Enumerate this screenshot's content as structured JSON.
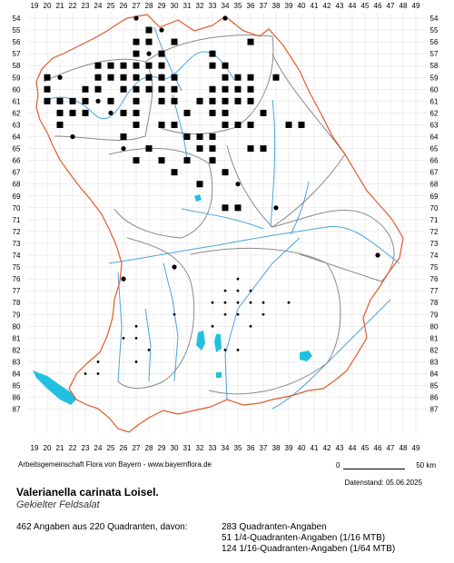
{
  "map": {
    "x_labels": [
      "19",
      "20",
      "21",
      "22",
      "23",
      "24",
      "25",
      "26",
      "27",
      "28",
      "29",
      "30",
      "31",
      "32",
      "33",
      "34",
      "35",
      "36",
      "37",
      "38",
      "39",
      "40",
      "41",
      "42",
      "43",
      "44",
      "45",
      "46",
      "47",
      "48",
      "49"
    ],
    "y_labels": [
      "54",
      "55",
      "56",
      "57",
      "58",
      "59",
      "60",
      "61",
      "62",
      "63",
      "64",
      "65",
      "66",
      "67",
      "68",
      "69",
      "70",
      "71",
      "72",
      "73",
      "74",
      "75",
      "76",
      "77",
      "78",
      "79",
      "80",
      "81",
      "82",
      "83",
      "84",
      "85",
      "86",
      "87"
    ],
    "colors": {
      "state_border": "#e05a2b",
      "district_border": "#8a8a8a",
      "river": "#4aa3df",
      "lake": "#22c0e0",
      "grid": "#dddddd",
      "marker": "#000000"
    },
    "legend_meaning": {
      "square": "Quadranten-Angabe",
      "circle_filled": "1/4-Quadranten-Angabe (1/16 MTB)",
      "dot_small": "1/16-Quadranten-Angabe (1/64 MTB)"
    },
    "quadrant_records": [
      [
        20,
        59
      ],
      [
        20,
        60
      ],
      [
        20,
        61
      ],
      [
        21,
        61
      ],
      [
        21,
        62
      ],
      [
        21,
        63
      ],
      [
        22,
        61
      ],
      [
        22,
        62
      ],
      [
        23,
        60
      ],
      [
        23,
        61
      ],
      [
        23,
        62
      ],
      [
        24,
        58
      ],
      [
        24,
        59
      ],
      [
        24,
        60
      ],
      [
        25,
        58
      ],
      [
        25,
        59
      ],
      [
        25,
        61
      ],
      [
        26,
        58
      ],
      [
        26,
        59
      ],
      [
        26,
        60
      ],
      [
        26,
        62
      ],
      [
        26,
        64
      ],
      [
        27,
        56
      ],
      [
        27,
        57
      ],
      [
        27,
        58
      ],
      [
        27,
        59
      ],
      [
        27,
        60
      ],
      [
        27,
        61
      ],
      [
        27,
        62
      ],
      [
        27,
        63
      ],
      [
        27,
        66
      ],
      [
        28,
        55
      ],
      [
        28,
        56
      ],
      [
        28,
        58
      ],
      [
        28,
        59
      ],
      [
        28,
        60
      ],
      [
        28,
        65
      ],
      [
        29,
        57
      ],
      [
        29,
        58
      ],
      [
        29,
        59
      ],
      [
        29,
        60
      ],
      [
        29,
        61
      ],
      [
        29,
        63
      ],
      [
        29,
        66
      ],
      [
        30,
        56
      ],
      [
        30,
        59
      ],
      [
        30,
        60
      ],
      [
        30,
        61
      ],
      [
        30,
        63
      ],
      [
        30,
        67
      ],
      [
        31,
        62
      ],
      [
        31,
        64
      ],
      [
        31,
        66
      ],
      [
        32,
        61
      ],
      [
        32,
        64
      ],
      [
        32,
        65
      ],
      [
        32,
        68
      ],
      [
        33,
        57
      ],
      [
        33,
        58
      ],
      [
        33,
        60
      ],
      [
        33,
        61
      ],
      [
        33,
        62
      ],
      [
        33,
        64
      ],
      [
        33,
        65
      ],
      [
        33,
        66
      ],
      [
        34,
        58
      ],
      [
        34,
        59
      ],
      [
        34,
        60
      ],
      [
        34,
        61
      ],
      [
        34,
        62
      ],
      [
        34,
        63
      ],
      [
        34,
        67
      ],
      [
        34,
        70
      ],
      [
        35,
        59
      ],
      [
        35,
        60
      ],
      [
        35,
        61
      ],
      [
        35,
        63
      ],
      [
        35,
        70
      ],
      [
        36,
        56
      ],
      [
        36,
        59
      ],
      [
        36,
        60
      ],
      [
        36,
        61
      ],
      [
        36,
        63
      ],
      [
        36,
        65
      ],
      [
        37,
        62
      ],
      [
        37,
        65
      ],
      [
        38,
        59
      ],
      [
        39,
        63
      ],
      [
        40,
        63
      ]
    ],
    "quarter_records": [
      [
        21,
        59
      ],
      [
        22,
        64
      ],
      [
        24,
        61
      ],
      [
        25,
        62
      ],
      [
        26,
        65
      ],
      [
        27,
        54
      ],
      [
        28,
        57
      ],
      [
        29,
        55
      ],
      [
        34,
        54
      ],
      [
        35,
        68
      ],
      [
        35,
        70
      ],
      [
        38,
        70
      ],
      [
        46,
        74
      ],
      [
        26,
        76
      ],
      [
        30,
        75
      ]
    ],
    "sixteenth_records": [
      [
        33,
        78
      ],
      [
        34,
        77
      ],
      [
        34,
        78
      ],
      [
        35,
        76
      ],
      [
        35,
        77
      ],
      [
        35,
        78
      ],
      [
        36,
        77
      ],
      [
        36,
        78
      ],
      [
        37,
        78
      ],
      [
        37,
        79
      ],
      [
        36,
        80
      ],
      [
        35,
        79
      ],
      [
        34,
        79
      ],
      [
        33,
        80
      ],
      [
        30,
        79
      ],
      [
        27,
        80
      ],
      [
        27,
        81
      ],
      [
        28,
        82
      ],
      [
        27,
        83
      ],
      [
        34,
        82
      ],
      [
        35,
        82
      ],
      [
        23,
        84
      ],
      [
        24,
        84
      ],
      [
        24,
        83
      ],
      [
        39,
        78
      ],
      [
        26,
        81
      ]
    ]
  },
  "footer": {
    "credit": "Arbeitsgemeinschaft Flora von Bayern - www.bayernflora.de",
    "scale_start": "0",
    "scale_end": "50 km",
    "date": "Datenstand: 05.06.2025",
    "taxon_name": "Valerianella carinata Loisel.",
    "common_name": "Gekielter Feldsalat",
    "summary": "462 Angaben aus 220 Quadranten, davon:",
    "stat_1": "283 Quadranten-Angaben",
    "stat_2": "51 1/4-Quadranten-Angaben (1/16 MTB)",
    "stat_3": "124 1/16-Quadranten-Angaben (1/64 MTB)"
  }
}
